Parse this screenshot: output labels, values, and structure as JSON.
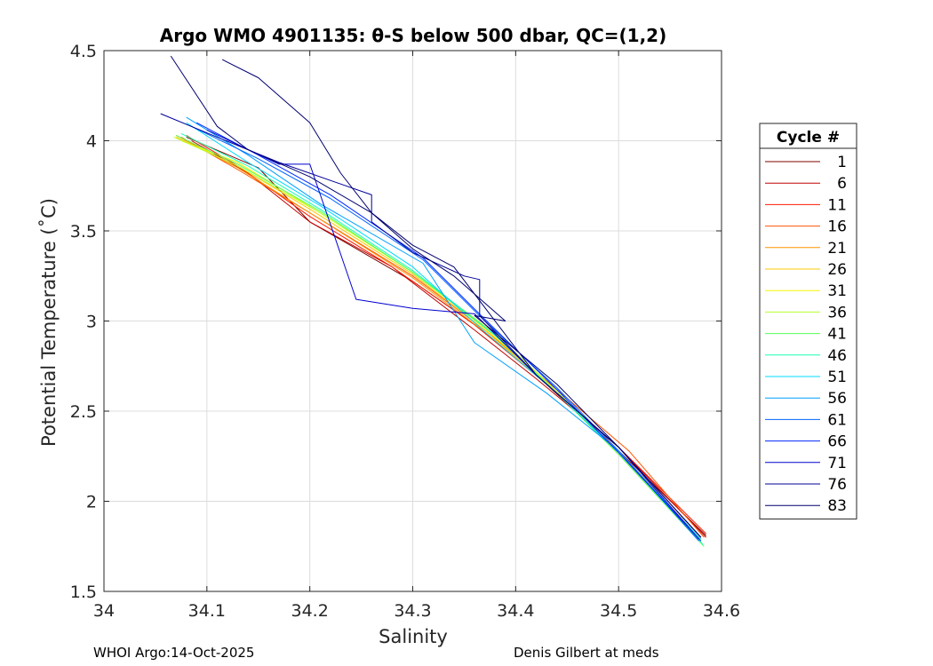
{
  "chart_data": {
    "type": "line",
    "title": "Argo WMO 4901135: θ-S below 500 dbar,  QC=(1,2)",
    "xlabel": "Salinity",
    "ylabel": "Potential Temperature (˚C)",
    "xlim": [
      34,
      34.6
    ],
    "ylim": [
      1.5,
      4.5
    ],
    "xticks": [
      "34",
      "34.1",
      "34.2",
      "34.3",
      "34.4",
      "34.5",
      "34.6"
    ],
    "yticks": [
      "1.5",
      "2",
      "2.5",
      "3",
      "3.5",
      "4",
      "4.5"
    ],
    "grid": true,
    "legend": {
      "title": "Cycle #",
      "placement": "right",
      "entries": [
        {
          "label": "1",
          "color": "#7f0000"
        },
        {
          "label": "6",
          "color": "#c00000"
        },
        {
          "label": "11",
          "color": "#ff1a00"
        },
        {
          "label": "16",
          "color": "#ff5500"
        },
        {
          "label": "21",
          "color": "#ff9400"
        },
        {
          "label": "26",
          "color": "#ffc800"
        },
        {
          "label": "31",
          "color": "#f5f500"
        },
        {
          "label": "36",
          "color": "#b4ff2a"
        },
        {
          "label": "41",
          "color": "#55ff55"
        },
        {
          "label": "46",
          "color": "#1affb4"
        },
        {
          "label": "51",
          "color": "#00d8ff"
        },
        {
          "label": "56",
          "color": "#00a0ff"
        },
        {
          "label": "61",
          "color": "#0064ff"
        },
        {
          "label": "66",
          "color": "#0028ff"
        },
        {
          "label": "71",
          "color": "#0000d0"
        },
        {
          "label": "76",
          "color": "#000098"
        },
        {
          "label": "83",
          "color": "#000070"
        }
      ]
    },
    "series": [
      {
        "name": "cycle-1",
        "color": "#7f0000",
        "x": [
          34.08,
          34.15,
          34.2,
          34.3,
          34.36,
          34.42,
          34.5,
          34.585
        ],
        "y": [
          4.02,
          3.85,
          3.55,
          3.22,
          2.98,
          2.7,
          2.28,
          1.81
        ]
      },
      {
        "name": "cycle-6",
        "color": "#c00000",
        "x": [
          34.085,
          34.14,
          34.2,
          34.28,
          34.36,
          34.42,
          34.5,
          34.585
        ],
        "y": [
          4.0,
          3.82,
          3.55,
          3.3,
          2.95,
          2.68,
          2.3,
          1.8
        ]
      },
      {
        "name": "cycle-11",
        "color": "#ff1a00",
        "x": [
          34.08,
          34.13,
          34.2,
          34.28,
          34.36,
          34.43,
          34.5,
          34.585
        ],
        "y": [
          4.03,
          3.86,
          3.58,
          3.3,
          2.98,
          2.65,
          2.3,
          1.82
        ]
      },
      {
        "name": "cycle-16",
        "color": "#ff5500",
        "x": [
          34.075,
          34.13,
          34.2,
          34.3,
          34.37,
          34.44,
          34.51,
          34.583
        ],
        "y": [
          4.02,
          3.84,
          3.6,
          3.25,
          2.95,
          2.62,
          2.28,
          1.8
        ]
      },
      {
        "name": "cycle-21",
        "color": "#ff9400",
        "x": [
          34.07,
          34.13,
          34.2,
          34.3,
          34.37,
          34.44,
          34.5,
          34.58
        ],
        "y": [
          4.03,
          3.85,
          3.6,
          3.24,
          2.94,
          2.6,
          2.28,
          1.79
        ]
      },
      {
        "name": "cycle-26",
        "color": "#ffc800",
        "x": [
          34.07,
          34.13,
          34.2,
          34.3,
          34.37,
          34.44,
          34.5,
          34.58
        ],
        "y": [
          4.02,
          3.86,
          3.62,
          3.26,
          2.95,
          2.6,
          2.26,
          1.78
        ]
      },
      {
        "name": "cycle-31",
        "color": "#f5f500",
        "x": [
          34.075,
          34.13,
          34.21,
          34.3,
          34.37,
          34.44,
          34.5,
          34.58
        ],
        "y": [
          4.0,
          3.88,
          3.6,
          3.27,
          2.96,
          2.61,
          2.27,
          1.79
        ]
      },
      {
        "name": "cycle-36",
        "color": "#b4ff2a",
        "x": [
          34.068,
          34.13,
          34.21,
          34.3,
          34.38,
          34.44,
          34.5,
          34.58
        ],
        "y": [
          4.02,
          3.86,
          3.6,
          3.27,
          2.93,
          2.61,
          2.27,
          1.78
        ]
      },
      {
        "name": "cycle-41",
        "color": "#55ff55",
        "x": [
          34.07,
          34.13,
          34.21,
          34.3,
          34.38,
          34.44,
          34.5,
          34.583
        ],
        "y": [
          4.03,
          3.87,
          3.61,
          3.27,
          2.92,
          2.6,
          2.26,
          1.75
        ]
      },
      {
        "name": "cycle-46",
        "color": "#1affb4",
        "x": [
          34.075,
          34.14,
          34.21,
          34.3,
          34.38,
          34.44,
          34.5,
          34.582
        ],
        "y": [
          4.04,
          3.86,
          3.62,
          3.28,
          2.92,
          2.6,
          2.27,
          1.76
        ]
      },
      {
        "name": "cycle-51",
        "color": "#00d8ff",
        "x": [
          34.08,
          34.14,
          34.21,
          34.3,
          34.37,
          34.44,
          34.5,
          34.58
        ],
        "y": [
          4.1,
          3.88,
          3.64,
          3.3,
          2.94,
          2.6,
          2.27,
          1.79
        ]
      },
      {
        "name": "cycle-56",
        "color": "#00a0ff",
        "x": [
          34.08,
          34.14,
          34.21,
          34.31,
          34.36,
          34.43,
          34.5,
          34.58
        ],
        "y": [
          4.13,
          3.92,
          3.65,
          3.32,
          2.88,
          2.6,
          2.28,
          1.78
        ]
      },
      {
        "name": "cycle-61",
        "color": "#0064ff",
        "x": [
          34.085,
          34.15,
          34.22,
          34.31,
          34.37,
          34.44,
          34.5,
          34.578
        ],
        "y": [
          4.08,
          3.9,
          3.68,
          3.34,
          3.0,
          2.63,
          2.28,
          1.78
        ]
      },
      {
        "name": "cycle-66",
        "color": "#0028ff",
        "x": [
          34.09,
          34.15,
          34.22,
          34.31,
          34.37,
          34.44,
          34.5,
          34.58
        ],
        "y": [
          4.1,
          3.92,
          3.7,
          3.35,
          3.01,
          2.62,
          2.27,
          1.78
        ]
      },
      {
        "name": "cycle-71",
        "color": "#0000d0",
        "x": [
          34.1,
          34.17,
          34.2,
          34.245,
          34.3,
          34.36,
          34.42,
          34.5,
          34.578
        ],
        "y": [
          4.06,
          3.87,
          3.87,
          3.12,
          3.07,
          3.04,
          2.7,
          2.3,
          1.79
        ]
      },
      {
        "name": "cycle-76",
        "color": "#000098",
        "x": [
          34.055,
          34.11,
          34.17,
          34.26,
          34.26,
          34.3,
          34.35,
          34.365,
          34.365,
          34.42,
          34.5,
          34.58
        ],
        "y": [
          4.15,
          4.02,
          3.88,
          3.7,
          3.55,
          3.38,
          3.25,
          3.23,
          3.03,
          2.7,
          2.3,
          1.8
        ]
      },
      {
        "name": "cycle-83",
        "color": "#000070",
        "x": [
          34.065,
          34.11,
          34.14,
          34.2,
          34.26,
          34.3,
          34.34,
          34.39,
          34.36,
          34.44,
          34.5,
          34.58
        ],
        "y": [
          4.47,
          4.08,
          3.95,
          3.8,
          3.6,
          3.4,
          3.25,
          3.0,
          3.03,
          2.65,
          2.3,
          1.8
        ]
      },
      {
        "name": "cycle-83b",
        "color": "#000070",
        "x": [
          34.115,
          34.15,
          34.2,
          34.23,
          34.26,
          34.3,
          34.34,
          34.42,
          34.5,
          34.58
        ],
        "y": [
          4.45,
          4.35,
          4.1,
          3.82,
          3.6,
          3.42,
          3.3,
          2.7,
          2.3,
          1.8
        ]
      }
    ]
  },
  "footer": {
    "left": "WHOI Argo:14-Oct-2025",
    "right": "Denis Gilbert at meds"
  }
}
